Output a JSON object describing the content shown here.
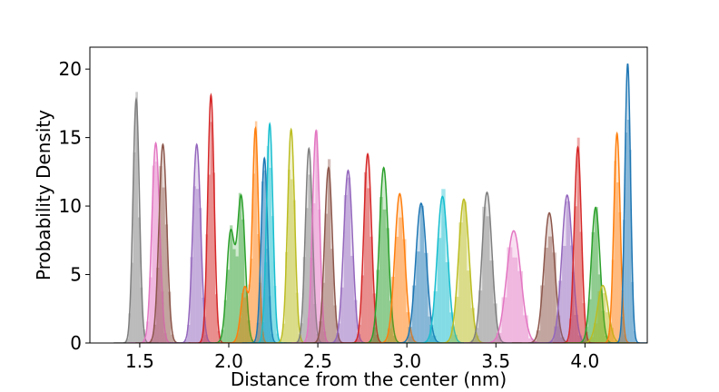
{
  "chart_data": {
    "type": "histogram+kde",
    "title": "",
    "xlabel": "Distance from the center (nm)",
    "ylabel": "Probability Density",
    "xlim": [
      1.22,
      4.35
    ],
    "ylim": [
      0,
      21.6
    ],
    "x_ticks": [
      1.5,
      2.0,
      2.5,
      3.0,
      3.5,
      4.0
    ],
    "x_tick_labels": [
      "1.5",
      "2.0",
      "2.5",
      "3.0",
      "3.5",
      "4.0"
    ],
    "y_ticks": [
      0,
      5,
      10,
      15,
      20
    ],
    "y_tick_labels": [
      "0",
      "5",
      "10",
      "15",
      "20"
    ],
    "grid": false,
    "legend": "none",
    "colors": {
      "blue": "#1f77b4",
      "orange": "#ff7f0e",
      "green": "#2ca02c",
      "red": "#d62728",
      "purple": "#9467bd",
      "brown": "#8c564b",
      "pink": "#e377c2",
      "gray": "#7f7f7f",
      "olive": "#bcbd22",
      "cyan": "#17becf"
    },
    "series": [
      {
        "color": "gray",
        "peaks": [
          [
            1.48,
            17.8,
            0.018
          ]
        ]
      },
      {
        "color": "pink",
        "peaks": [
          [
            1.59,
            14.6,
            0.022
          ]
        ]
      },
      {
        "color": "brown",
        "peaks": [
          [
            1.63,
            14.5,
            0.022
          ]
        ]
      },
      {
        "color": "purple",
        "peaks": [
          [
            1.82,
            14.5,
            0.022
          ]
        ]
      },
      {
        "color": "red",
        "peaks": [
          [
            1.9,
            18.1,
            0.018
          ]
        ]
      },
      {
        "color": "green",
        "peaks": [
          [
            2.01,
            8.0,
            0.022
          ],
          [
            2.07,
            10.6,
            0.022
          ]
        ]
      },
      {
        "color": "orange",
        "peaks": [
          [
            2.09,
            4.1,
            0.022
          ],
          [
            2.15,
            15.6,
            0.017
          ]
        ]
      },
      {
        "color": "blue",
        "peaks": [
          [
            2.2,
            13.5,
            0.018
          ]
        ]
      },
      {
        "color": "cyan",
        "peaks": [
          [
            2.23,
            16.0,
            0.018
          ]
        ]
      },
      {
        "color": "olive",
        "peaks": [
          [
            2.35,
            15.6,
            0.02
          ]
        ]
      },
      {
        "color": "gray",
        "peaks": [
          [
            2.45,
            14.2,
            0.02
          ]
        ]
      },
      {
        "color": "pink",
        "peaks": [
          [
            2.49,
            15.5,
            0.02
          ]
        ]
      },
      {
        "color": "brown",
        "peaks": [
          [
            2.56,
            12.8,
            0.022
          ]
        ]
      },
      {
        "color": "purple",
        "peaks": [
          [
            2.67,
            12.6,
            0.025
          ]
        ]
      },
      {
        "color": "red",
        "peaks": [
          [
            2.78,
            13.8,
            0.022
          ]
        ]
      },
      {
        "color": "green",
        "peaks": [
          [
            2.87,
            12.8,
            0.025
          ]
        ]
      },
      {
        "color": "orange",
        "peaks": [
          [
            2.96,
            10.9,
            0.028
          ]
        ]
      },
      {
        "color": "blue",
        "peaks": [
          [
            3.08,
            10.2,
            0.03
          ]
        ]
      },
      {
        "color": "cyan",
        "peaks": [
          [
            3.2,
            10.7,
            0.03
          ]
        ]
      },
      {
        "color": "olive",
        "peaks": [
          [
            3.32,
            10.5,
            0.03
          ]
        ]
      },
      {
        "color": "gray",
        "peaks": [
          [
            3.45,
            11.0,
            0.028
          ]
        ]
      },
      {
        "color": "pink",
        "peaks": [
          [
            3.6,
            8.2,
            0.04
          ]
        ]
      },
      {
        "color": "brown",
        "peaks": [
          [
            3.8,
            9.5,
            0.03
          ]
        ]
      },
      {
        "color": "purple",
        "peaks": [
          [
            3.9,
            10.8,
            0.03
          ]
        ]
      },
      {
        "color": "red",
        "peaks": [
          [
            3.96,
            14.3,
            0.02
          ]
        ]
      },
      {
        "color": "green",
        "peaks": [
          [
            4.06,
            9.9,
            0.025
          ]
        ]
      },
      {
        "color": "olive",
        "peaks": [
          [
            4.1,
            4.2,
            0.03
          ]
        ]
      },
      {
        "color": "orange",
        "peaks": [
          [
            4.18,
            15.3,
            0.018
          ]
        ]
      },
      {
        "color": "blue",
        "peaks": [
          [
            4.24,
            20.4,
            0.016
          ]
        ]
      }
    ]
  }
}
